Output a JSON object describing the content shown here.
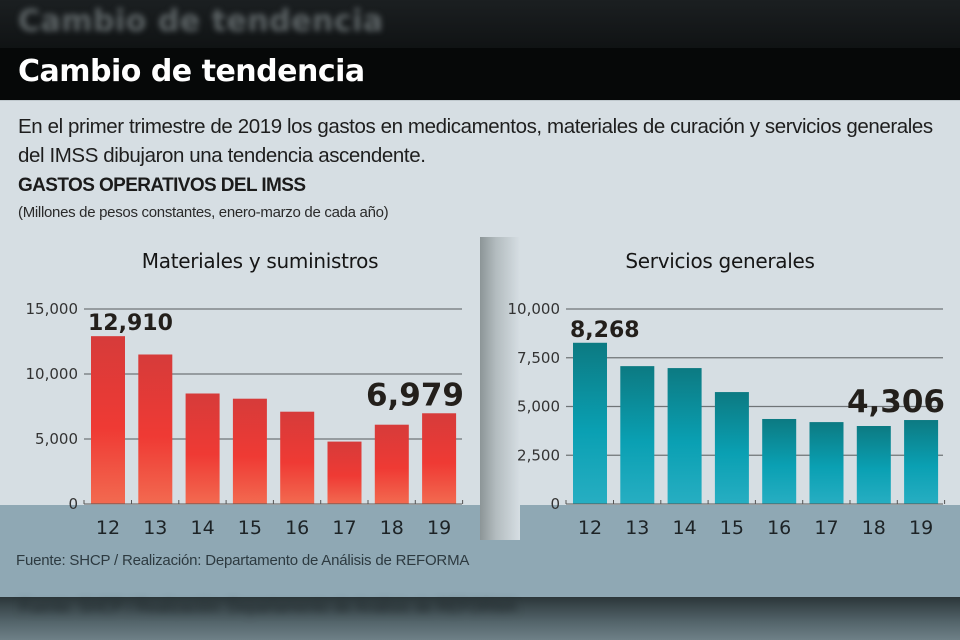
{
  "header": {
    "blurred_title": "Cambio de tendencia",
    "title": "Cambio de tendencia"
  },
  "lead": "En el primer trimestre de 2019 los gastos en medicamentos, materiales de curación y servicios generales del IMSS dibujaron una tendencia ascendente.",
  "section": {
    "title": "GASTOS OPERATIVOS DEL IMSS",
    "subtitle": "(Millones de pesos constantes, enero-marzo de cada año)"
  },
  "source": "Fuente: SHCP / Realización: Departamento de Análisis de REFORMA",
  "colors": {
    "materiales_top": "#d63b3a",
    "materiales_mid": "#ef3a34",
    "materiales_bottom": "#f26a50",
    "servicios_top": "#0c7a82",
    "servicios_mid": "#0aa0b3",
    "servicios_bottom": "#27aec2",
    "panel_bg": "#d6dee3",
    "band_bg": "#8fa8b4"
  },
  "chart_data": [
    {
      "type": "bar",
      "title": "Materiales y suministros",
      "categories": [
        "12",
        "13",
        "14",
        "15",
        "16",
        "17",
        "18",
        "19"
      ],
      "values": [
        12910,
        11500,
        8500,
        8100,
        7100,
        4800,
        6100,
        6979
      ],
      "labeled": [
        {
          "index": 0,
          "text": "12,910"
        },
        {
          "index": 7,
          "text": "6,979"
        }
      ],
      "yticks": [
        0,
        5000,
        10000,
        15000
      ],
      "ytick_labels": [
        "0",
        "5,000",
        "10,000",
        "15,000"
      ],
      "ylim": [
        0,
        15000
      ],
      "xlabel": "",
      "ylabel": "Millones de pesos constantes",
      "grid": true
    },
    {
      "type": "bar",
      "title": "Servicios generales",
      "categories": [
        "12",
        "13",
        "14",
        "15",
        "16",
        "17",
        "18",
        "19"
      ],
      "values": [
        8268,
        7070,
        6970,
        5740,
        4360,
        4200,
        4000,
        4306
      ],
      "labeled": [
        {
          "index": 0,
          "text": "8,268"
        },
        {
          "index": 7,
          "text": "4,306"
        }
      ],
      "yticks": [
        0,
        2500,
        5000,
        7500,
        10000
      ],
      "ytick_labels": [
        "0",
        "2,500",
        "5,000",
        "7,500",
        "10,000"
      ],
      "ylim": [
        0,
        10000
      ],
      "xlabel": "",
      "ylabel": "Millones de pesos constantes",
      "grid": true
    }
  ]
}
